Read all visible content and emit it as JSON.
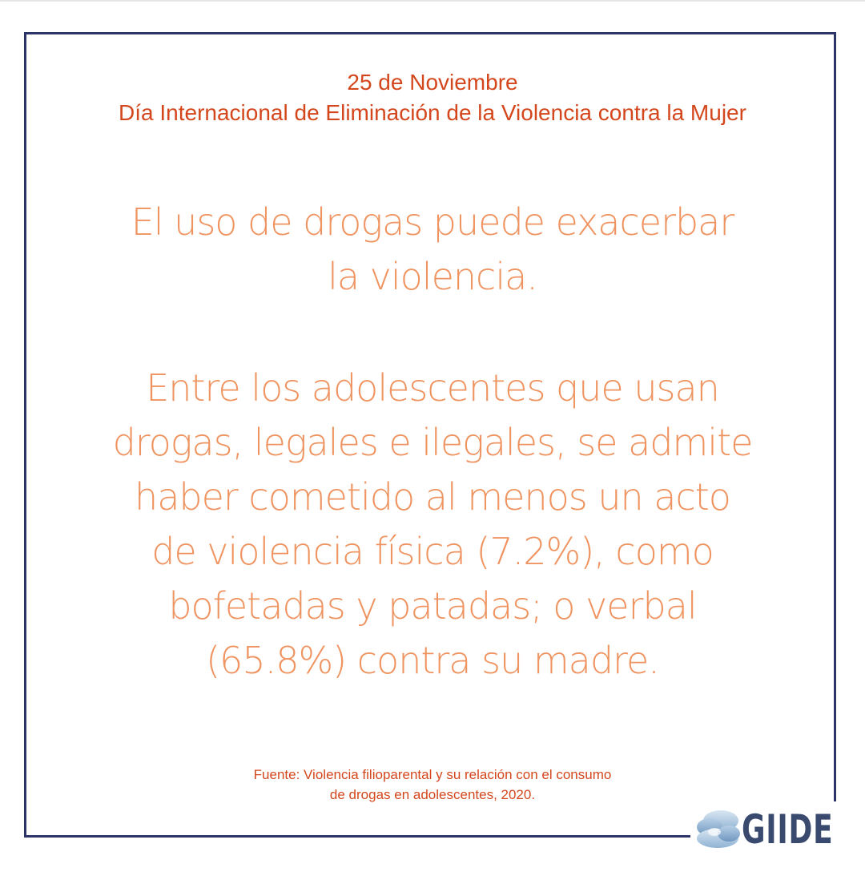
{
  "heading": {
    "line1": "25 de Noviembre",
    "line2": "Día Internacional de Eliminación de la Violencia contra la Mujer"
  },
  "message": {
    "paragraph1": [
      "El uso de drogas puede exacerbar",
      "la violencia."
    ],
    "paragraph2": [
      "Entre los adolescentes que usan",
      "drogas, legales e ilegales, se admite",
      "haber cometido al menos un acto",
      "de violencia física (7.2%), como",
      "bofetadas y patadas; o verbal",
      "(65.8%) contra su madre."
    ]
  },
  "source": {
    "line1": "Fuente: Violencia filioparental y su relación con el consumo",
    "line2": "de drogas en adolescentes, 2020."
  },
  "logo": {
    "text": "GIIDE",
    "icon": "cloud-logo-icon"
  },
  "colors": {
    "frame": "#2d3467",
    "heading": "#d4471d",
    "message": "#ef9460",
    "logo": "#3a4a6e"
  }
}
